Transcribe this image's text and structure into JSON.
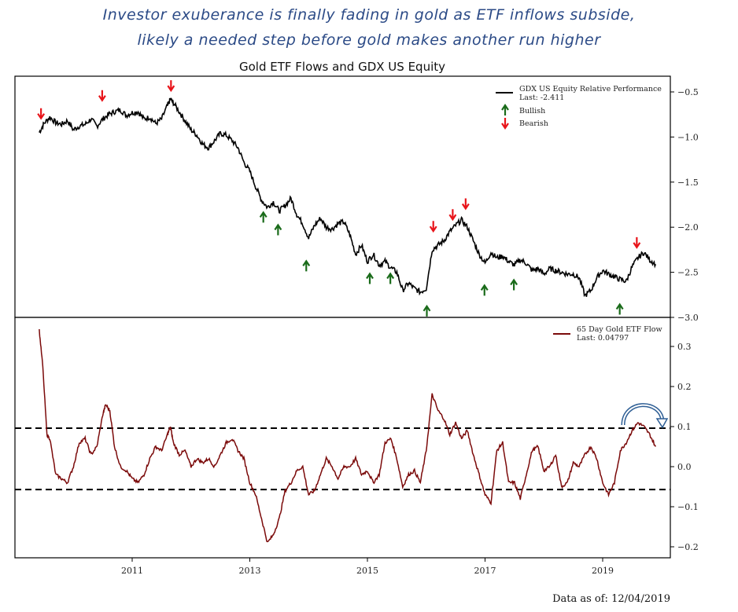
{
  "headline": {
    "line1": "Investor exuberance is finally fading in gold as ETF inflows subside,",
    "line2": "likely a needed step before gold makes another run higher"
  },
  "footer": {
    "label": "Data as of:",
    "date": "12/04/2019"
  },
  "colors": {
    "gdx": "#000000",
    "flow": "#7b0a0a",
    "bullish": "#1a6b1a",
    "bearish": "#e8141a",
    "annotation": "#2f5f95",
    "headline": "#2b4a86"
  },
  "chart_data": [
    {
      "type": "line",
      "title": "Gold ETF Flows and GDX US Equity",
      "panel": "top",
      "xlabel": "",
      "ylabel": "",
      "x_ticks": [
        "2011",
        "2013",
        "2015",
        "2017",
        "2019"
      ],
      "y_ticks": [
        -0.5,
        -1.0,
        -1.5,
        -2.0,
        -2.5,
        -3.0
      ],
      "ylim": [
        -3.0,
        -0.4
      ],
      "xlim": [
        2009.35,
        2020.15
      ],
      "y_axis_position": "right",
      "legend": {
        "position": "upper right",
        "entries": [
          {
            "label": "GDX US Equity Relative Performance",
            "sublabel": "Last: -2.411",
            "marker": "line"
          },
          {
            "label": "Bullish",
            "marker": "green-up-arrow"
          },
          {
            "label": "Bearish",
            "marker": "red-down-arrow"
          }
        ]
      },
      "series": [
        {
          "name": "GDX US Equity Relative Performance",
          "last": -2.411,
          "x": [
            2009.42,
            2009.5,
            2009.6,
            2009.7,
            2009.8,
            2009.9,
            2010.0,
            2010.1,
            2010.2,
            2010.3,
            2010.4,
            2010.5,
            2010.6,
            2010.7,
            2010.8,
            2010.9,
            2011.0,
            2011.1,
            2011.2,
            2011.3,
            2011.4,
            2011.5,
            2011.6,
            2011.65,
            2011.7,
            2011.8,
            2011.9,
            2012.0,
            2012.1,
            2012.2,
            2012.3,
            2012.4,
            2012.5,
            2012.6,
            2012.7,
            2012.8,
            2012.9,
            2013.0,
            2013.1,
            2013.2,
            2013.3,
            2013.4,
            2013.5,
            2013.6,
            2013.7,
            2013.8,
            2013.9,
            2014.0,
            2014.1,
            2014.2,
            2014.3,
            2014.4,
            2014.5,
            2014.6,
            2014.7,
            2014.8,
            2014.9,
            2015.0,
            2015.1,
            2015.2,
            2015.3,
            2015.4,
            2015.5,
            2015.6,
            2015.7,
            2015.8,
            2015.9,
            2016.0,
            2016.1,
            2016.2,
            2016.3,
            2016.4,
            2016.5,
            2016.6,
            2016.7,
            2016.8,
            2016.9,
            2017.0,
            2017.1,
            2017.2,
            2017.3,
            2017.4,
            2017.5,
            2017.6,
            2017.7,
            2017.8,
            2017.9,
            2018.0,
            2018.1,
            2018.2,
            2018.3,
            2018.4,
            2018.5,
            2018.6,
            2018.7,
            2018.8,
            2018.9,
            2019.0,
            2019.1,
            2019.2,
            2019.3,
            2019.4,
            2019.5,
            2019.6,
            2019.7,
            2019.8,
            2019.9
          ],
          "y": [
            -0.95,
            -0.85,
            -0.78,
            -0.84,
            -0.86,
            -0.82,
            -0.92,
            -0.88,
            -0.86,
            -0.8,
            -0.88,
            -0.8,
            -0.75,
            -0.72,
            -0.7,
            -0.76,
            -0.73,
            -0.72,
            -0.8,
            -0.78,
            -0.85,
            -0.8,
            -0.65,
            -0.58,
            -0.62,
            -0.72,
            -0.82,
            -0.92,
            -0.98,
            -1.08,
            -1.12,
            -1.04,
            -0.96,
            -0.98,
            -1.04,
            -1.12,
            -1.28,
            -1.38,
            -1.55,
            -1.7,
            -1.78,
            -1.72,
            -1.82,
            -1.76,
            -1.68,
            -1.86,
            -1.96,
            -2.12,
            -1.98,
            -1.9,
            -2.0,
            -2.02,
            -1.96,
            -1.94,
            -2.08,
            -2.3,
            -2.2,
            -2.38,
            -2.3,
            -2.42,
            -2.38,
            -2.45,
            -2.5,
            -2.7,
            -2.62,
            -2.68,
            -2.72,
            -2.68,
            -2.25,
            -2.2,
            -2.15,
            -2.05,
            -1.98,
            -1.92,
            -2.0,
            -2.15,
            -2.3,
            -2.4,
            -2.28,
            -2.34,
            -2.32,
            -2.38,
            -2.42,
            -2.36,
            -2.4,
            -2.48,
            -2.46,
            -2.52,
            -2.46,
            -2.48,
            -2.5,
            -2.52,
            -2.52,
            -2.56,
            -2.76,
            -2.7,
            -2.56,
            -2.48,
            -2.52,
            -2.55,
            -2.58,
            -2.6,
            -2.44,
            -2.34,
            -2.28,
            -2.36,
            -2.41
          ]
        }
      ],
      "annotations": {
        "bearish_arrows": [
          [
            2009.45,
            -0.75
          ],
          [
            2010.49,
            -0.55
          ],
          [
            2011.66,
            -0.44
          ],
          [
            2016.12,
            -2.0
          ],
          [
            2016.45,
            -1.87
          ],
          [
            2016.67,
            -1.75
          ],
          [
            2019.58,
            -2.18
          ]
        ],
        "bullish_arrows": [
          [
            2013.23,
            -1.88
          ],
          [
            2013.48,
            -2.02
          ],
          [
            2013.96,
            -2.42
          ],
          [
            2015.04,
            -2.56
          ],
          [
            2015.39,
            -2.56
          ],
          [
            2016.01,
            -2.92
          ],
          [
            2016.99,
            -2.69
          ],
          [
            2017.49,
            -2.63
          ],
          [
            2019.29,
            -2.9
          ]
        ]
      }
    },
    {
      "type": "line",
      "panel": "bottom",
      "x_ticks": [
        "2011",
        "2013",
        "2015",
        "2017",
        "2019"
      ],
      "y_ticks": [
        0.3,
        0.2,
        0.1,
        0.0,
        -0.1,
        -0.2
      ],
      "ylim": [
        -0.23,
        0.37
      ],
      "xlim": [
        2009.35,
        2020.15
      ],
      "y_axis_position": "right",
      "reference_lines": [
        0.096,
        -0.057
      ],
      "legend": {
        "position": "upper right",
        "entries": [
          {
            "label": "65 Day Gold ETF Flow",
            "sublabel": "Last: 0.04797",
            "marker": "line"
          }
        ]
      },
      "series": [
        {
          "name": "65 Day Gold ETF Flow",
          "last": 0.04797,
          "x": [
            2009.42,
            2009.48,
            2009.55,
            2009.6,
            2009.7,
            2009.8,
            2009.9,
            2010.0,
            2010.1,
            2010.2,
            2010.3,
            2010.4,
            2010.5,
            2010.55,
            2010.62,
            2010.7,
            2010.8,
            2010.9,
            2011.0,
            2011.1,
            2011.2,
            2011.3,
            2011.4,
            2011.5,
            2011.6,
            2011.65,
            2011.7,
            2011.8,
            2011.9,
            2012.0,
            2012.1,
            2012.2,
            2012.3,
            2012.4,
            2012.5,
            2012.6,
            2012.7,
            2012.8,
            2012.9,
            2013.0,
            2013.1,
            2013.2,
            2013.3,
            2013.4,
            2013.5,
            2013.6,
            2013.7,
            2013.8,
            2013.9,
            2014.0,
            2014.1,
            2014.2,
            2014.3,
            2014.4,
            2014.5,
            2014.6,
            2014.7,
            2014.8,
            2014.9,
            2015.0,
            2015.1,
            2015.2,
            2015.3,
            2015.4,
            2015.5,
            2015.6,
            2015.7,
            2015.8,
            2015.9,
            2016.0,
            2016.1,
            2016.2,
            2016.3,
            2016.4,
            2016.5,
            2016.6,
            2016.7,
            2016.8,
            2016.9,
            2017.0,
            2017.1,
            2017.2,
            2017.3,
            2017.4,
            2017.5,
            2017.6,
            2017.7,
            2017.8,
            2017.9,
            2018.0,
            2018.1,
            2018.2,
            2018.3,
            2018.4,
            2018.5,
            2018.6,
            2018.7,
            2018.8,
            2018.9,
            2019.0,
            2019.1,
            2019.2,
            2019.3,
            2019.4,
            2019.5,
            2019.6,
            2019.7,
            2019.8,
            2019.9
          ],
          "y": [
            0.34,
            0.25,
            0.08,
            0.07,
            -0.02,
            -0.03,
            -0.04,
            0.0,
            0.06,
            0.07,
            0.03,
            0.05,
            0.13,
            0.155,
            0.14,
            0.05,
            0.0,
            -0.01,
            -0.03,
            -0.04,
            -0.02,
            0.02,
            0.05,
            0.04,
            0.08,
            0.1,
            0.06,
            0.03,
            0.04,
            0.0,
            0.02,
            0.01,
            0.02,
            0.0,
            0.03,
            0.06,
            0.07,
            0.04,
            0.02,
            -0.04,
            -0.07,
            -0.13,
            -0.19,
            -0.17,
            -0.13,
            -0.06,
            -0.04,
            -0.01,
            0.0,
            -0.07,
            -0.06,
            -0.02,
            0.02,
            0.0,
            -0.03,
            0.0,
            0.0,
            0.02,
            -0.02,
            -0.01,
            -0.04,
            -0.02,
            0.06,
            0.07,
            0.02,
            -0.05,
            -0.02,
            -0.01,
            -0.04,
            0.04,
            0.18,
            0.14,
            0.12,
            0.08,
            0.11,
            0.07,
            0.09,
            0.03,
            -0.02,
            -0.07,
            -0.09,
            0.04,
            0.06,
            -0.04,
            -0.04,
            -0.08,
            -0.02,
            0.04,
            0.05,
            -0.01,
            0.0,
            0.03,
            -0.05,
            -0.04,
            0.01,
            0.0,
            0.03,
            0.05,
            0.02,
            -0.04,
            -0.07,
            -0.04,
            0.04,
            0.06,
            0.09,
            0.11,
            0.1,
            0.08,
            0.05
          ]
        }
      ]
    }
  ]
}
